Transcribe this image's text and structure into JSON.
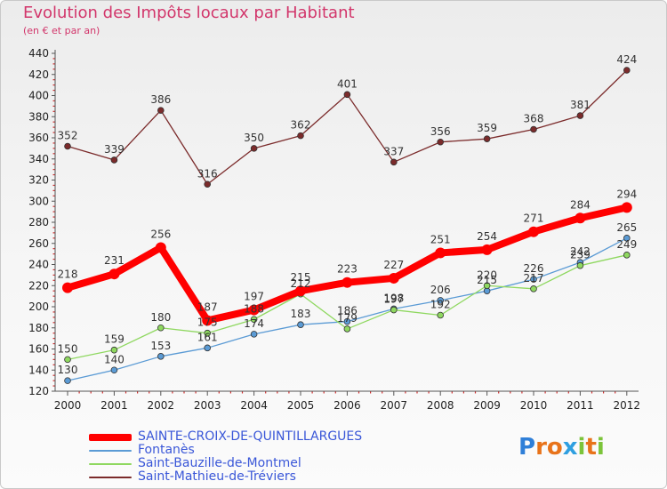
{
  "title": "Evolution des Impôts locaux par Habitant",
  "subtitle": "(en € et par an)",
  "brand": {
    "text": "Proxiti",
    "colors": [
      "#2f7fd8",
      "#e8731a",
      "#e8731a",
      "#2f9fe0",
      "#7cc43a",
      "#e8731a",
      "#7cc43a"
    ]
  },
  "chart_data": {
    "type": "line",
    "title": "Evolution des Impôts locaux par Habitant",
    "subtitle": "(en € et par an)",
    "xlabel": "",
    "ylabel": "",
    "ylim": [
      120,
      440
    ],
    "ytick_step": 20,
    "grid": false,
    "legend_position": "bottom-left",
    "categories": [
      "2000",
      "2001",
      "2002",
      "2003",
      "2004",
      "2005",
      "2006",
      "2007",
      "2008",
      "2009",
      "2010",
      "2011",
      "2012"
    ],
    "series": [
      {
        "name": "SAINTE-CROIX-DE-QUINTILLARGUES",
        "color": "#ff0000",
        "values": [
          218,
          231,
          256,
          187,
          197,
          215,
          223,
          227,
          251,
          254,
          271,
          284,
          294
        ],
        "labels": [
          "218",
          "231",
          "256",
          "187",
          "197",
          "215",
          "223",
          "227",
          "251",
          "254",
          "271",
          "284",
          "294"
        ]
      },
      {
        "name": "Fontanès",
        "color": "#5b9bd5",
        "values": [
          130,
          140,
          153,
          161,
          174,
          183,
          186,
          198,
          206,
          215,
          226,
          242,
          265
        ],
        "labels": [
          "130",
          "140",
          "153",
          "161",
          "174",
          "183",
          "186",
          "198",
          "206",
          "215",
          "226",
          "242",
          "265"
        ]
      },
      {
        "name": "Saint-Bauzille-de-Montmel",
        "color": "#8fd860",
        "values": [
          150,
          159,
          180,
          175,
          188,
          212,
          179,
          197,
          192,
          220,
          217,
          239,
          249
        ],
        "labels": [
          "150",
          "159",
          "180",
          "175",
          "188",
          "212",
          "179",
          "197",
          "192",
          "220",
          "217",
          "239",
          "249"
        ]
      },
      {
        "name": "Saint-Mathieu-de-Tréviers",
        "color": "#7b2b2b",
        "values": [
          352,
          339,
          386,
          316,
          350,
          362,
          401,
          337,
          356,
          359,
          368,
          381,
          424
        ],
        "labels": [
          "352",
          "339",
          "386",
          "316",
          "350",
          "362",
          "401",
          "337",
          "356",
          "359",
          "368",
          "381",
          "424"
        ]
      }
    ]
  },
  "legend": [
    {
      "label": "SAINTE-CROIX-DE-QUINTILLARGUES",
      "color": "#ff0000"
    },
    {
      "label": "Fontanès",
      "color": "#5b9bd5"
    },
    {
      "label": "Saint-Bauzille-de-Montmel",
      "color": "#8fd860"
    },
    {
      "label": "Saint-Mathieu-de-Tréviers",
      "color": "#7b2b2b"
    }
  ]
}
